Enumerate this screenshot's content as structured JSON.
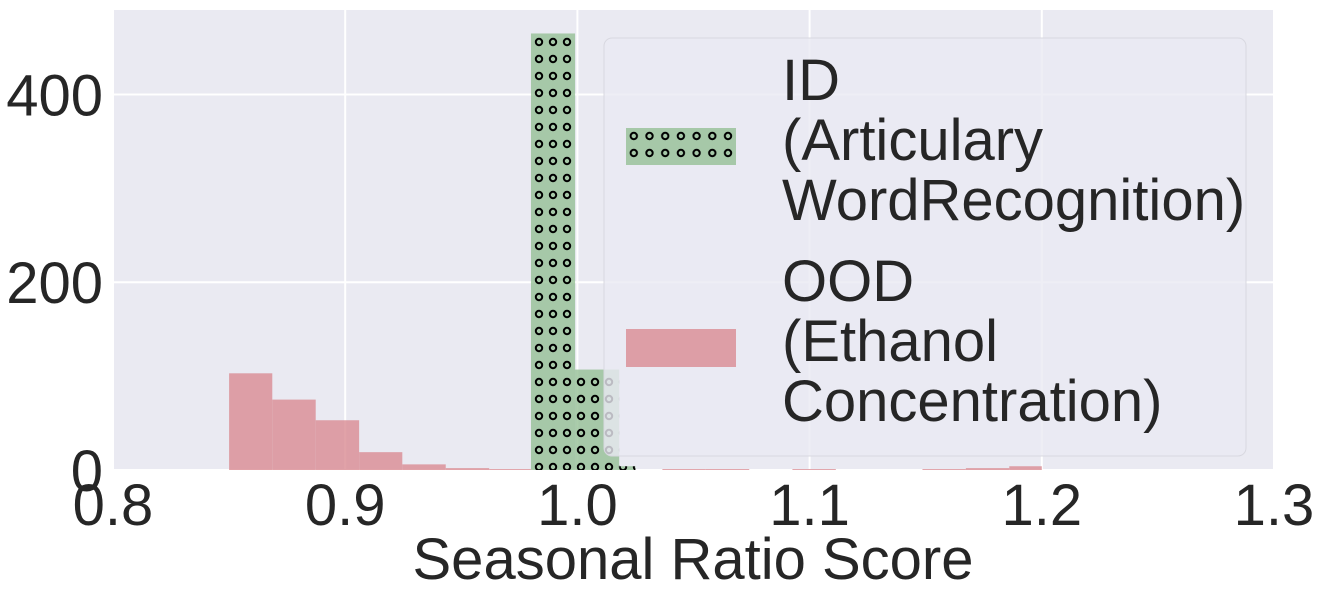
{
  "chart_data": {
    "type": "bar",
    "title": "",
    "xlabel": "Seasonal Ratio Score",
    "ylabel": "",
    "xlim": [
      0.8,
      1.3
    ],
    "ylim": [
      0,
      490
    ],
    "xticks": [
      "0.8",
      "0.9",
      "1.0",
      "1.1",
      "1.2",
      "1.3"
    ],
    "yticks": [
      "0",
      "200",
      "400"
    ],
    "grid": true,
    "legend_position": "upper-right",
    "series": [
      {
        "name": "ID (Articulary WordRecognition)",
        "legend_lines": [
          "ID",
          "(Articulary",
          "WordRecognition)"
        ],
        "color": "#8fbc8f",
        "pattern": "dots",
        "bins": [
          {
            "start": 0.98,
            "end": 0.999,
            "value": 465
          },
          {
            "start": 0.999,
            "end": 1.018,
            "value": 107
          },
          {
            "start": 1.018,
            "end": 1.025,
            "value": 4
          }
        ]
      },
      {
        "name": "OOD (Ethanol Concentration)",
        "legend_lines": [
          "OOD",
          "(Ethanol",
          "Concentration)"
        ],
        "color": "#d98b92",
        "pattern": "none",
        "bins": [
          {
            "start": 0.85,
            "end": 0.8686,
            "value": 103
          },
          {
            "start": 0.8686,
            "end": 0.8873,
            "value": 75
          },
          {
            "start": 0.8873,
            "end": 0.906,
            "value": 53
          },
          {
            "start": 0.906,
            "end": 0.9246,
            "value": 19
          },
          {
            "start": 0.9246,
            "end": 0.9433,
            "value": 6
          },
          {
            "start": 0.9433,
            "end": 0.962,
            "value": 2
          },
          {
            "start": 0.962,
            "end": 0.98,
            "value": 1
          },
          {
            "start": 1.0366,
            "end": 1.0553,
            "value": 1
          },
          {
            "start": 1.0553,
            "end": 1.074,
            "value": 1
          },
          {
            "start": 1.0926,
            "end": 1.1113,
            "value": 1
          },
          {
            "start": 1.1486,
            "end": 1.1673,
            "value": 1
          },
          {
            "start": 1.1673,
            "end": 1.186,
            "value": 2
          },
          {
            "start": 1.186,
            "end": 1.2,
            "value": 4
          }
        ]
      }
    ]
  }
}
